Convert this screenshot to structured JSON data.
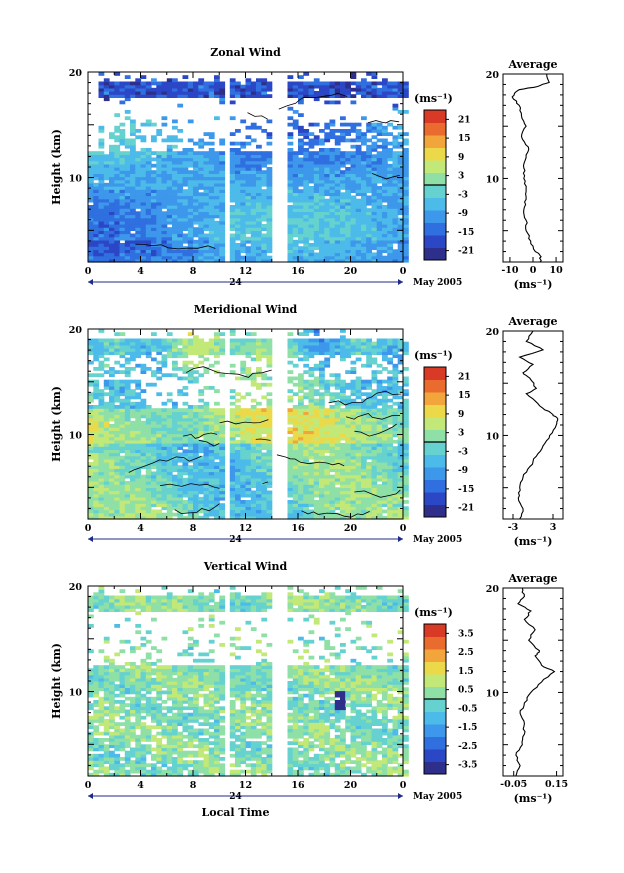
{
  "figure": {
    "xlabel": "Local Time",
    "ylabel": "Height (km)",
    "day_label": "24",
    "date_label": "May 2005",
    "unit_label": "(ms⁻¹)",
    "x_ticks": [
      "0",
      "4",
      "8",
      "12",
      "16",
      "20",
      "0"
    ],
    "colors": [
      "#2e2f8a",
      "#2b47c6",
      "#2f6fe0",
      "#3d97ea",
      "#4cbbe9",
      "#66d2d0",
      "#8fe0a6",
      "#c2e878",
      "#ecd94a",
      "#f2a53a",
      "#ea6b2e",
      "#d93a26"
    ],
    "gap_color": "#ffffff"
  },
  "chart_data": [
    {
      "type": "heatmap",
      "id": "zonal",
      "title": "Zonal Wind",
      "xlabel": "",
      "ylabel": "Height (km)",
      "x_range": [
        0,
        24
      ],
      "y_range": [
        2,
        20
      ],
      "y_ticks": [
        "20",
        "10"
      ],
      "colorbar": {
        "unit": "(ms⁻¹)",
        "range": [
          -24,
          24
        ],
        "ticks": [
          "21",
          "15",
          "9",
          "3",
          "-3",
          "-9",
          "-15",
          "-21"
        ]
      },
      "average_profile": {
        "title": "Average",
        "xlabel": "(ms⁻¹)",
        "x_ticks": [
          "-10",
          "0",
          "10"
        ],
        "y_ticks": [
          "20",
          "10"
        ],
        "x_range": [
          -13,
          13
        ],
        "points": [
          [
            3,
            2
          ],
          [
            3.5,
            2.5
          ],
          [
            1,
            3
          ],
          [
            -1,
            4
          ],
          [
            -3,
            5
          ],
          [
            -3,
            6
          ],
          [
            -4,
            7
          ],
          [
            -3,
            8
          ],
          [
            -3,
            9
          ],
          [
            -4,
            10
          ],
          [
            -4,
            11
          ],
          [
            -3,
            12
          ],
          [
            -2,
            13
          ],
          [
            -5,
            14
          ],
          [
            -3,
            15
          ],
          [
            -5,
            16
          ],
          [
            -6,
            17
          ],
          [
            -9,
            17.8
          ],
          [
            -6,
            18.5
          ],
          [
            2,
            18.8
          ],
          [
            7,
            19.2
          ],
          [
            6,
            20
          ]
        ]
      }
    },
    {
      "type": "heatmap",
      "id": "meridional",
      "title": "Meridional Wind",
      "xlabel": "",
      "ylabel": "Height (km)",
      "x_range": [
        0,
        24
      ],
      "y_range": [
        2,
        20
      ],
      "y_ticks": [
        "20",
        "10"
      ],
      "colorbar": {
        "unit": "(ms⁻¹)",
        "range": [
          -24,
          24
        ],
        "ticks": [
          "21",
          "15",
          "9",
          "3",
          "-3",
          "-9",
          "-15",
          "-21"
        ]
      },
      "average_profile": {
        "title": "Average",
        "xlabel": "(ms⁻¹)",
        "x_ticks": [
          "-3",
          "3"
        ],
        "y_ticks": [
          "20",
          "10"
        ],
        "x_range": [
          -4.5,
          4.5
        ],
        "points": [
          [
            -2,
            2
          ],
          [
            -1.5,
            3
          ],
          [
            -2.2,
            4
          ],
          [
            -2,
            5
          ],
          [
            -1.5,
            6
          ],
          [
            -0.5,
            7
          ],
          [
            0.5,
            8
          ],
          [
            1.5,
            9
          ],
          [
            2.5,
            10
          ],
          [
            3.5,
            11
          ],
          [
            3.7,
            11.6
          ],
          [
            3,
            12
          ],
          [
            1.5,
            12.6
          ],
          [
            0,
            13.5
          ],
          [
            -1,
            14
          ],
          [
            0.5,
            14.5
          ],
          [
            -0.5,
            15.5
          ],
          [
            -1.5,
            16
          ],
          [
            0,
            16.8
          ],
          [
            -2,
            17.5
          ],
          [
            1.5,
            18.2
          ],
          [
            -1,
            19
          ],
          [
            0,
            20
          ]
        ]
      }
    },
    {
      "type": "heatmap",
      "id": "vertical",
      "title": "Vertical Wind",
      "xlabel": "Local Time",
      "ylabel": "Height (km)",
      "x_range": [
        0,
        24
      ],
      "y_range": [
        2,
        20
      ],
      "y_ticks": [
        "20",
        "10"
      ],
      "colorbar": {
        "unit": "(ms⁻¹)",
        "range": [
          -4,
          4
        ],
        "ticks": [
          "3.5",
          "2.5",
          "1.5",
          "0.5",
          "-0.5",
          "-1.5",
          "-2.5",
          "-3.5"
        ]
      },
      "average_profile": {
        "title": "Average",
        "xlabel": "(ms⁻¹)",
        "x_ticks": [
          "-0.05",
          "0.15"
        ],
        "y_ticks": [
          "20",
          "10"
        ],
        "x_range": [
          -0.1,
          0.18
        ],
        "points": [
          [
            -0.04,
            2
          ],
          [
            -0.02,
            3
          ],
          [
            -0.04,
            4
          ],
          [
            -0.01,
            5
          ],
          [
            0.0,
            6
          ],
          [
            0.0,
            7
          ],
          [
            -0.02,
            8
          ],
          [
            0.0,
            9
          ],
          [
            0.03,
            10
          ],
          [
            0.08,
            11
          ],
          [
            0.14,
            12
          ],
          [
            0.08,
            12.6
          ],
          [
            0.05,
            13.5
          ],
          [
            0.07,
            14
          ],
          [
            0.02,
            15
          ],
          [
            0.05,
            16
          ],
          [
            0.0,
            17
          ],
          [
            0.03,
            17.8
          ],
          [
            -0.03,
            18.5
          ],
          [
            0.0,
            19.2
          ],
          [
            -0.01,
            20
          ]
        ]
      }
    }
  ]
}
